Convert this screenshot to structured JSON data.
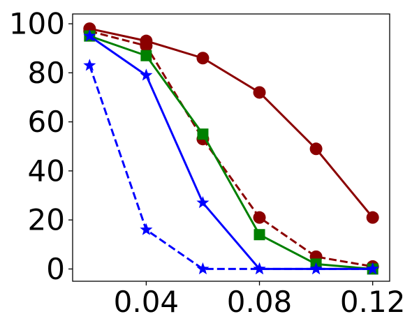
{
  "chart_data": {
    "type": "line",
    "title": "",
    "xlabel": "",
    "ylabel": "",
    "xlim": [
      0.014,
      0.126
    ],
    "ylim": [
      -5,
      104
    ],
    "grid": false,
    "legend": "none",
    "x_ticks": [
      0.04,
      0.08,
      0.12
    ],
    "x_tick_labels": [
      "0.04",
      "0.08",
      "0.12"
    ],
    "y_ticks": [
      0,
      20,
      40,
      60,
      80,
      100
    ],
    "y_tick_labels": [
      "0",
      "20",
      "40",
      "60",
      "80",
      "100"
    ],
    "series": [
      {
        "color": "#8b0000",
        "dash": "solid",
        "marker": "circle",
        "x": [
          0.02,
          0.04,
          0.06,
          0.08,
          0.1,
          0.12
        ],
        "y": [
          98,
          93,
          86,
          72,
          49,
          21
        ]
      },
      {
        "color": "#8b0000",
        "dash": "dashed",
        "marker": "circle",
        "x": [
          0.02,
          0.04,
          0.06,
          0.08,
          0.1,
          0.12
        ],
        "y": [
          97,
          91,
          53,
          21,
          5,
          1
        ]
      },
      {
        "color": "#008000",
        "dash": "solid",
        "marker": "square",
        "x": [
          0.02,
          0.04,
          0.06,
          0.08,
          0.1,
          0.12
        ],
        "y": [
          95,
          87,
          55,
          14,
          2,
          0
        ]
      },
      {
        "color": "#0000ff",
        "dash": "solid",
        "marker": "star",
        "x": [
          0.02,
          0.04,
          0.06,
          0.08,
          0.1,
          0.12
        ],
        "y": [
          95,
          79,
          27,
          0,
          0,
          0
        ]
      },
      {
        "color": "#0000ff",
        "dash": "dashed",
        "marker": "star",
        "x": [
          0.02,
          0.04,
          0.06,
          0.08,
          0.1,
          0.12
        ],
        "y": [
          83,
          16,
          0,
          0,
          0,
          0
        ]
      }
    ]
  }
}
